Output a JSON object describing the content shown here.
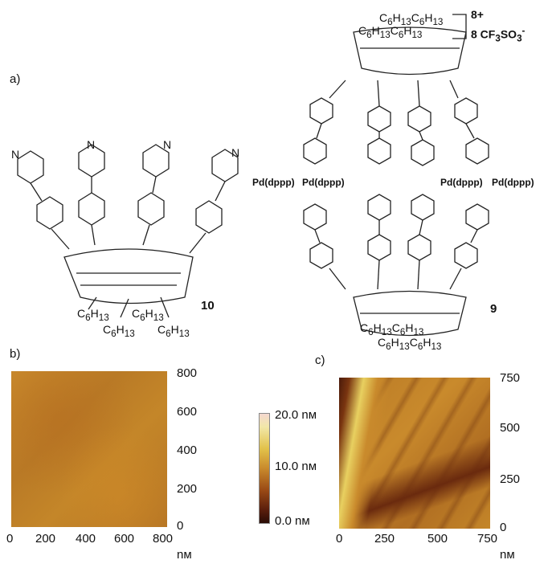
{
  "figure": {
    "panel_a_label": "a)",
    "panel_b_label": "b)",
    "panel_c_label": "c)",
    "molecule_10": {
      "id": "10",
      "pyridine_N": "N",
      "hexyl_labels": [
        "C6H13",
        "C6H13",
        "C6H13",
        "C6H13"
      ]
    },
    "molecule_9": {
      "id": "9",
      "charge": "8+",
      "counterion": "8 CF3SO3-",
      "pd_labels": [
        "Pd(dppp)",
        "Pd(dppp)",
        "Pd(dppp)",
        "Pd(dppp)"
      ],
      "hexyl_top": [
        "C6H13",
        "C6H13",
        "C6H13",
        "C6H13"
      ],
      "hexyl_bottom": [
        "C6H13",
        "C6H13",
        "C6H13",
        "C6H13"
      ]
    },
    "afm_b": {
      "x_ticks": [
        "0",
        "200",
        "400",
        "600",
        "800"
      ],
      "y_ticks": [
        "0",
        "200",
        "400",
        "600",
        "800"
      ],
      "unit": "nм"
    },
    "afm_c": {
      "x_ticks": [
        "0",
        "250",
        "500",
        "750"
      ],
      "y_ticks": [
        "0",
        "250",
        "500",
        "750"
      ],
      "unit": "nм"
    },
    "colorbar": {
      "labels": [
        "20.0 nм",
        "10.0 nм",
        "0.0 nм"
      ]
    }
  }
}
